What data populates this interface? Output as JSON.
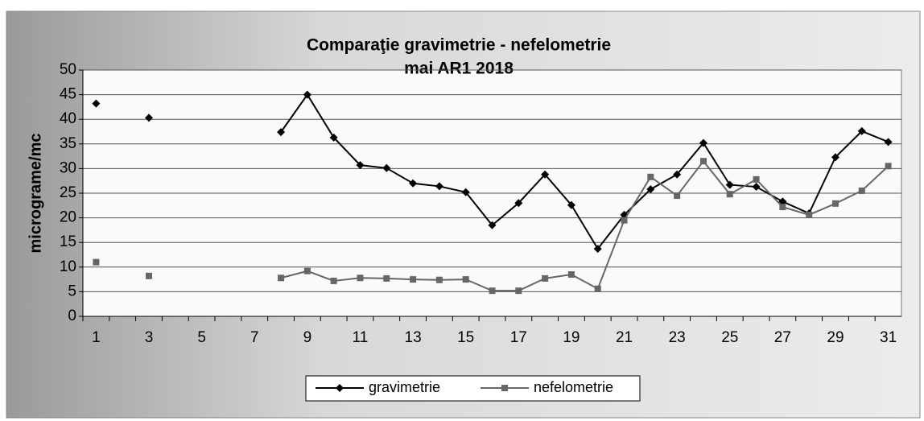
{
  "chart_data": {
    "type": "line",
    "title": "Comparaţie gravimetrie - nefelometrie",
    "subtitle": "mai  AR1 2018",
    "y_label": "micrograme/mc",
    "categories": [
      1,
      null,
      3,
      null,
      5,
      null,
      7,
      null,
      9,
      null,
      11,
      null,
      13,
      null,
      15,
      null,
      17,
      null,
      19,
      null,
      21,
      null,
      23,
      null,
      25,
      null,
      27,
      null,
      29,
      null,
      31
    ],
    "series": [
      {
        "name": "gravimetrie",
        "color": "#000000",
        "marker": "diamond",
        "values": [
          43.2,
          null,
          40.3,
          null,
          null,
          null,
          null,
          37.4,
          45,
          36.3,
          30.7,
          30.1,
          27,
          26.4,
          25.2,
          18.5,
          23,
          28.8,
          22.6,
          13.7,
          20.6,
          25.8,
          28.8,
          35.2,
          26.7,
          26.3,
          23.3,
          20.9,
          32.3,
          37.6,
          35.4
        ]
      },
      {
        "name": "nefelometrie",
        "color": "#666666",
        "marker": "square",
        "values": [
          11,
          null,
          8.2,
          null,
          null,
          null,
          null,
          7.8,
          9.2,
          7.2,
          7.8,
          7.7,
          7.5,
          7.4,
          7.5,
          5.2,
          5.2,
          7.7,
          8.5,
          5.6,
          19.5,
          28.3,
          24.5,
          31.5,
          24.8,
          27.8,
          22.2,
          20.6,
          22.9,
          25.5,
          30.5
        ]
      }
    ],
    "ylim": [
      0,
      50
    ],
    "yticks": [
      0,
      5,
      10,
      15,
      20,
      25,
      30,
      35,
      40,
      45,
      50
    ],
    "grid": true,
    "legend": "bottom"
  }
}
